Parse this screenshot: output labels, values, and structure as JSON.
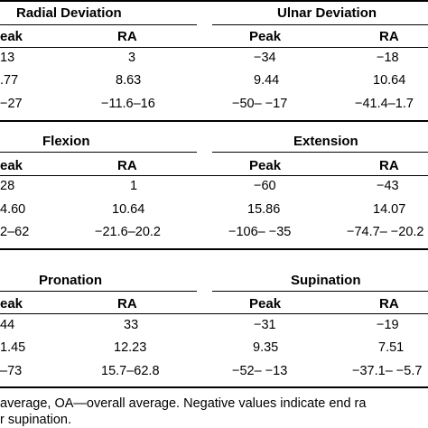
{
  "sections": [
    {
      "left_title": "Radial Deviation",
      "right_title": "Ulnar Deviation",
      "columns": [
        "eak",
        "RA",
        "Peak",
        "RA"
      ],
      "rows": [
        [
          "13",
          "3",
          "−34",
          "−18"
        ],
        [
          ".77",
          "8.63",
          "9.44",
          "10.64"
        ],
        [
          "−27",
          "−11.6–16",
          "−50– −17",
          "−41.4–1.7"
        ]
      ]
    },
    {
      "left_title": "Flexion",
      "right_title": "Extension",
      "columns": [
        "eak",
        "RA",
        "Peak",
        "RA"
      ],
      "rows": [
        [
          "28",
          "1",
          "−60",
          "−43"
        ],
        [
          "4.60",
          "10.64",
          "15.86",
          "14.07"
        ],
        [
          "2–62",
          "−21.6–20.2",
          "−106– −35",
          "−74.7– −20.2"
        ]
      ]
    },
    {
      "left_title": "Pronation",
      "right_title": "Supination",
      "columns": [
        "eak",
        "RA",
        "Peak",
        "RA"
      ],
      "rows": [
        [
          "44",
          "33",
          "−31",
          "−19"
        ],
        [
          "1.45",
          "12.23",
          "9.35",
          "7.51"
        ],
        [
          "–73",
          "15.7–62.8",
          "−52– −13",
          "−37.1– −5.7"
        ]
      ]
    }
  ],
  "footnote": {
    "line1": "average, OA—overall average. Negative values indicate end ra",
    "line2": "r supination."
  }
}
